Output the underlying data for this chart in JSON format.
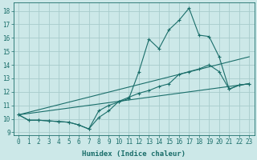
{
  "xlabel": "Humidex (Indice chaleur)",
  "bg_color": "#cce8e8",
  "grid_color": "#a8cccc",
  "line_color": "#1a6e6a",
  "xlim": [
    -0.5,
    23.5
  ],
  "ylim": [
    8.8,
    18.6
  ],
  "yticks": [
    9,
    10,
    11,
    12,
    13,
    14,
    15,
    16,
    17,
    18
  ],
  "xticks": [
    0,
    1,
    2,
    3,
    4,
    5,
    6,
    7,
    8,
    9,
    10,
    11,
    12,
    13,
    14,
    15,
    16,
    17,
    18,
    19,
    20,
    21,
    22,
    23
  ],
  "line1_x": [
    0,
    1,
    2,
    3,
    4,
    5,
    6,
    7,
    8,
    9,
    10,
    11,
    12,
    13,
    14,
    15,
    16,
    17,
    18,
    19,
    20,
    21,
    22,
    23
  ],
  "line1_y": [
    10.3,
    9.9,
    9.9,
    9.85,
    9.8,
    9.75,
    9.55,
    9.25,
    10.6,
    11.0,
    11.25,
    11.5,
    13.5,
    15.9,
    15.2,
    16.6,
    17.3,
    18.2,
    16.2,
    16.1,
    14.6,
    12.2,
    12.5,
    12.6
  ],
  "line2_x": [
    0,
    1,
    2,
    3,
    4,
    5,
    6,
    7,
    8,
    9,
    10,
    11,
    12,
    13,
    14,
    15,
    16,
    17,
    18,
    19,
    20,
    21,
    22,
    23
  ],
  "line2_y": [
    10.3,
    9.9,
    9.9,
    9.85,
    9.8,
    9.75,
    9.55,
    9.25,
    10.1,
    10.6,
    11.3,
    11.6,
    11.9,
    12.1,
    12.4,
    12.6,
    13.3,
    13.5,
    13.7,
    14.0,
    13.5,
    12.2,
    12.5,
    12.6
  ],
  "line3_x": [
    0,
    23
  ],
  "line3_y": [
    10.3,
    12.6
  ],
  "line4_x": [
    0,
    23
  ],
  "line4_y": [
    10.3,
    14.6
  ]
}
